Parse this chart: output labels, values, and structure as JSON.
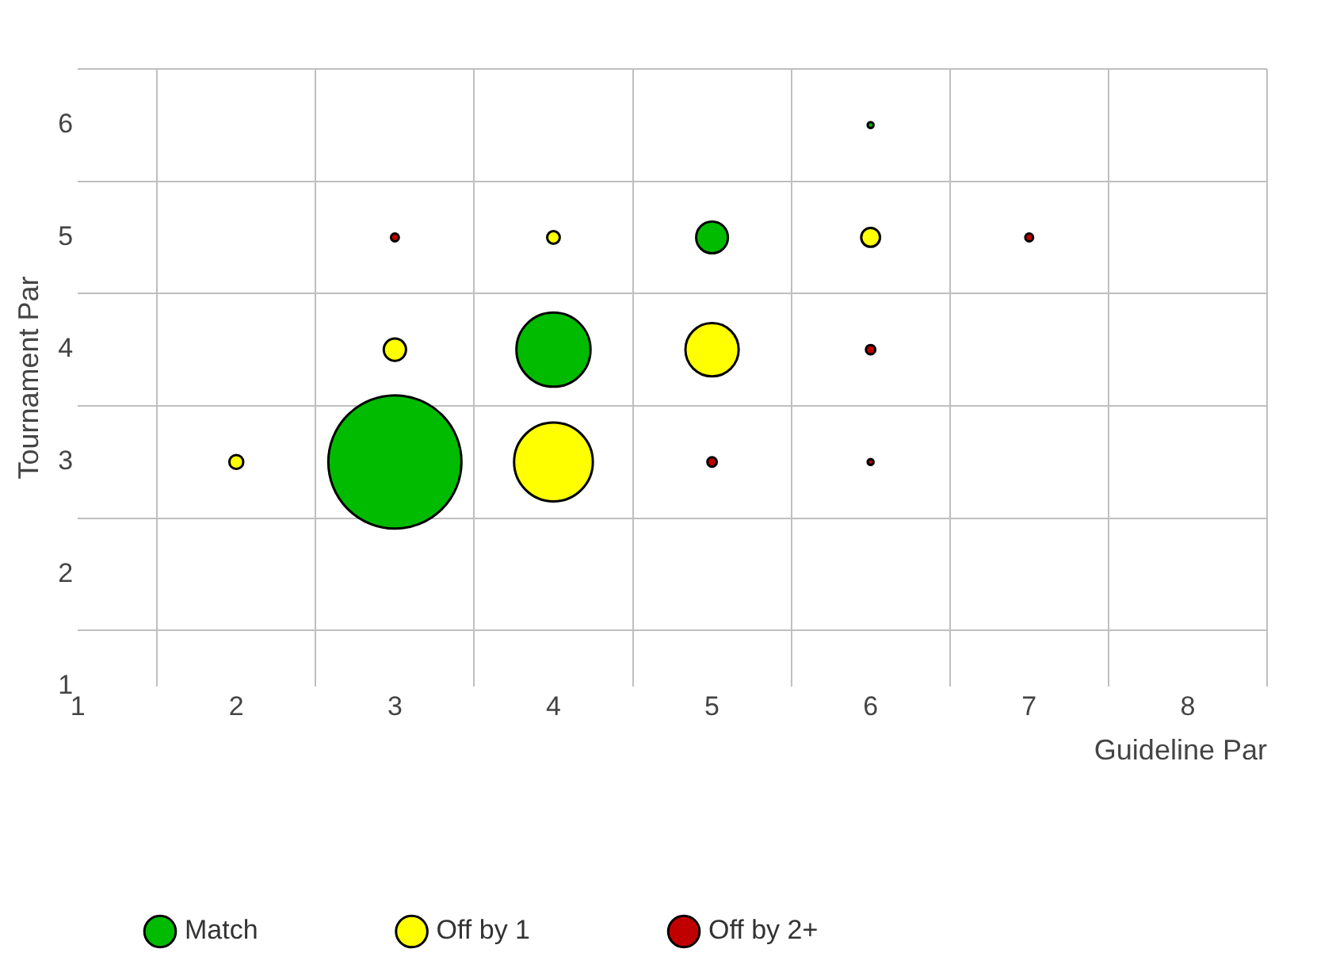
{
  "chart_data": {
    "type": "bubble",
    "xlabel": "Guideline Par",
    "ylabel": "Tournament Par",
    "xlim": [
      1,
      8.5
    ],
    "xticks": [
      1,
      {
        "value": 1.5,
        "label": null
      },
      2,
      {
        "value": 2.5,
        "label": null
      },
      3,
      {
        "value": 3.5,
        "label": null
      },
      4,
      {
        "value": 4.5,
        "label": null
      },
      5,
      {
        "value": 5.5,
        "label": null
      },
      6,
      {
        "value": 6.5,
        "label": null
      },
      7,
      {
        "value": 7.5,
        "label": null
      },
      8,
      {
        "value": 8.5,
        "label": null
      }
    ],
    "ylim": [
      1,
      6.5
    ],
    "yticks": [
      1,
      {
        "value": 1.5,
        "label": null
      },
      2,
      {
        "value": 2.5,
        "label": null
      },
      3,
      {
        "value": 3.5,
        "label": null
      },
      4,
      {
        "value": 4.5,
        "label": null
      },
      5,
      {
        "value": 5.5,
        "label": null
      },
      6,
      {
        "value": 6.5,
        "label": null
      }
    ],
    "grid": true,
    "legend": "bottom left",
    "marker": "circle",
    "series": [
      {
        "name": "Match",
        "color": "#00bb00",
        "x": [
          3,
          4,
          5,
          6
        ],
        "values": [
          3,
          4,
          5,
          6
        ],
        "sizes": [
          1,
          0.31,
          0.057,
          0.002
        ]
      },
      {
        "name": "Off by 1",
        "color": "#ffff00",
        "x": [
          2,
          3,
          4,
          4,
          5,
          6
        ],
        "values": [
          3,
          4,
          3,
          5,
          4,
          5
        ],
        "sizes": [
          0.011,
          0.028,
          0.35,
          0.009,
          0.16,
          0.02
        ]
      },
      {
        "name": "Off by 2+",
        "color": "#c00000",
        "x": [
          3,
          5,
          6,
          6,
          7
        ],
        "values": [
          5,
          3,
          4,
          3,
          5
        ],
        "sizes": [
          0.0035,
          0.005,
          0.005,
          0.002,
          0.0035
        ]
      }
    ]
  }
}
